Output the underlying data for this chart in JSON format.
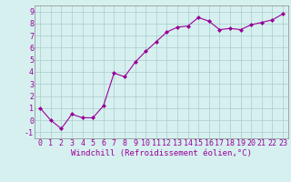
{
  "x": [
    0,
    1,
    2,
    3,
    4,
    5,
    6,
    7,
    8,
    9,
    10,
    11,
    12,
    13,
    14,
    15,
    16,
    17,
    18,
    19,
    20,
    21,
    22,
    23
  ],
  "y": [
    1.0,
    0.0,
    -0.7,
    0.5,
    0.2,
    0.2,
    1.2,
    3.9,
    3.6,
    4.8,
    5.7,
    6.5,
    7.3,
    7.7,
    7.8,
    8.5,
    8.2,
    7.5,
    7.6,
    7.5,
    7.9,
    8.1,
    8.3,
    8.8
  ],
  "line_color": "#990099",
  "marker": "D",
  "marker_size": 2,
  "bg_color": "#d6f0f0",
  "grid_color": "#aacccc",
  "xlabel": "Windchill (Refroidissement éolien,°C)",
  "xlabel_color": "#990099",
  "ylabel_ticks": [
    -1,
    0,
    1,
    2,
    3,
    4,
    5,
    6,
    7,
    8,
    9
  ],
  "xtick_labels": [
    "0",
    "1",
    "2",
    "3",
    "4",
    "5",
    "6",
    "7",
    "8",
    "9",
    "10",
    "11",
    "12",
    "13",
    "14",
    "15",
    "16",
    "17",
    "18",
    "19",
    "20",
    "21",
    "22",
    "23"
  ],
  "xlim": [
    -0.5,
    23.5
  ],
  "ylim": [
    -1.5,
    9.5
  ],
  "tick_color": "#990099",
  "label_fontsize": 6.5,
  "tick_fontsize": 6.0,
  "spine_color": "#888888"
}
